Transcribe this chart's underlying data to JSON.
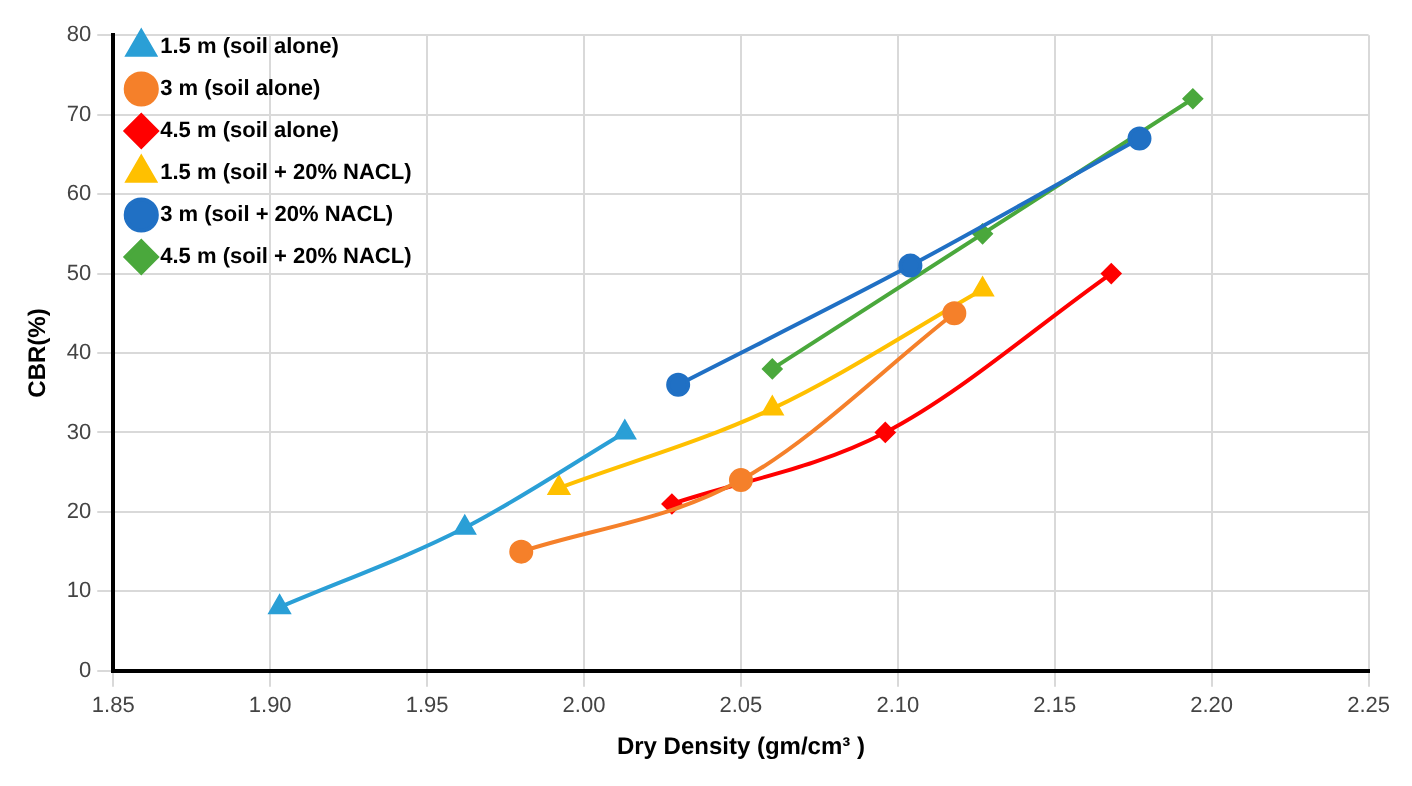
{
  "chart_data": {
    "type": "line",
    "xlabel": "Dry Density (gm/cm³ )",
    "ylabel": "CBR(%)",
    "xlim": [
      1.85,
      2.25
    ],
    "xticks": [
      {
        "value": 1.85,
        "label": "1.85"
      },
      {
        "value": 1.9,
        "label": "1.90"
      },
      {
        "value": 1.95,
        "label": "1.95"
      },
      {
        "value": 2.0,
        "label": "2.00"
      },
      {
        "value": 2.05,
        "label": "2.05"
      },
      {
        "value": 2.1,
        "label": "2.10"
      },
      {
        "value": 2.15,
        "label": "2.15"
      },
      {
        "value": 2.2,
        "label": "2.20"
      },
      {
        "value": 2.25,
        "label": "2.25"
      }
    ],
    "ylim": [
      0,
      80
    ],
    "yticks": [
      0,
      10,
      20,
      30,
      40,
      50,
      60,
      70,
      80
    ],
    "grid": true,
    "legend": "top left",
    "line_style": "solid",
    "series": [
      {
        "name": "1.5 m (soil alone)",
        "color": "#2a9fd6",
        "marker": "triangle",
        "x": [
          1.903,
          1.962,
          2.013
        ],
        "values": [
          8,
          18,
          30
        ]
      },
      {
        "name": "3 m (soil alone)",
        "color": "#f5802a",
        "marker": "circle",
        "x": [
          1.98,
          2.05,
          2.118
        ],
        "values": [
          15,
          24,
          45
        ]
      },
      {
        "name": "4.5 m (soil alone)",
        "color": "#ff0000",
        "marker": "diamond",
        "x": [
          2.028,
          2.096,
          2.168
        ],
        "values": [
          21,
          30,
          50
        ]
      },
      {
        "name": "1.5 m (soil + 20% NACL)",
        "color": "#ffc000",
        "marker": "triangle",
        "x": [
          1.992,
          2.06,
          2.127
        ],
        "values": [
          23,
          33,
          48
        ]
      },
      {
        "name": "3 m (soil + 20% NACL)",
        "color": "#2070c4",
        "marker": "circle",
        "x": [
          2.03,
          2.104,
          2.177
        ],
        "values": [
          36,
          51,
          67
        ]
      },
      {
        "name": "4.5 m (soil + 20% NACL)",
        "color": "#4aa83c",
        "marker": "diamond",
        "x": [
          2.06,
          2.127,
          2.194
        ],
        "values": [
          38,
          55,
          72
        ]
      }
    ]
  }
}
